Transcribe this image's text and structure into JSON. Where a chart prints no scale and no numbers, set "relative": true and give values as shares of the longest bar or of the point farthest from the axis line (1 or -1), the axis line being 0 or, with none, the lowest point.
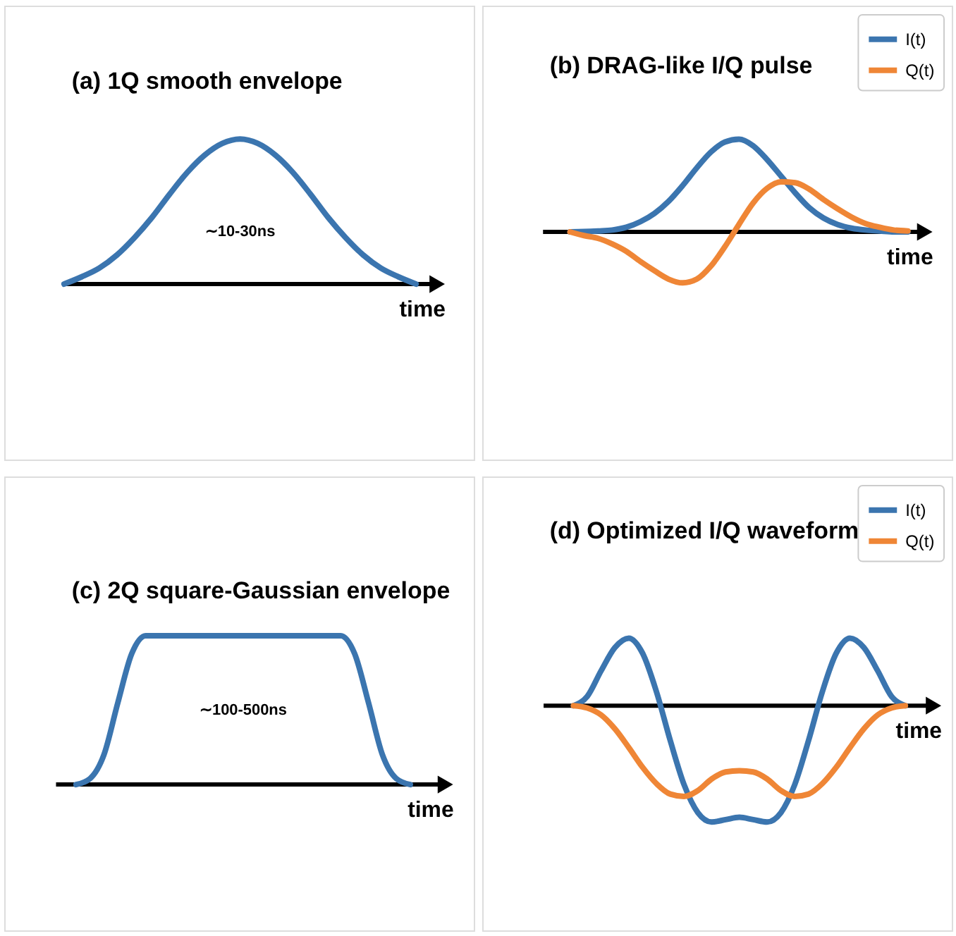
{
  "chart_data": [
    {
      "type": "line",
      "title": "(a) 1Q smooth envelope",
      "xlabel": "time",
      "relative": true,
      "tick_labels": false,
      "annotations": [
        "∼10-30ns"
      ],
      "categories": [
        null,
        null,
        null,
        null,
        null,
        null,
        null,
        null,
        null,
        null,
        null,
        null,
        null,
        null,
        null,
        null,
        null,
        null,
        null,
        null,
        null
      ],
      "series": [
        {
          "color": "#3b75af",
          "values": [
            0,
            0.05,
            0.11,
            0.2,
            0.32,
            0.46,
            0.62,
            0.77,
            0.89,
            0.97,
            1,
            0.97,
            0.89,
            0.77,
            0.62,
            0.46,
            0.32,
            0.2,
            0.11,
            0.05,
            0
          ]
        }
      ]
    },
    {
      "type": "line",
      "title": "(b) DRAG-like I/Q pulse",
      "xlabel": "time",
      "relative": true,
      "tick_labels": false,
      "legend": "top right",
      "categories": [
        null,
        null,
        null,
        null,
        null,
        null,
        null,
        null,
        null,
        null,
        null,
        null,
        null,
        null,
        null,
        null,
        null,
        null,
        null,
        null,
        null,
        null,
        null,
        null,
        null
      ],
      "series": [
        {
          "name": "I(t)",
          "color": "#3b75af",
          "values": [
            0,
            0.003,
            0.01,
            0.02,
            0.05,
            0.11,
            0.2,
            0.33,
            0.5,
            0.69,
            0.86,
            0.97,
            1,
            0.93,
            0.78,
            0.6,
            0.42,
            0.26,
            0.15,
            0.08,
            0.04,
            0.02,
            0.01,
            0,
            0
          ]
        },
        {
          "name": "Q(t)",
          "color": "#ef8636",
          "values": [
            0,
            -0.04,
            -0.07,
            -0.13,
            -0.21,
            -0.32,
            -0.42,
            -0.51,
            -0.55,
            -0.51,
            -0.37,
            -0.16,
            0.08,
            0.31,
            0.47,
            0.54,
            0.53,
            0.46,
            0.35,
            0.25,
            0.16,
            0.09,
            0.05,
            0.02,
            0.01
          ]
        }
      ]
    },
    {
      "type": "line",
      "title": "(c) 2Q square-Gaussian envelope",
      "xlabel": "time",
      "relative": true,
      "tick_labels": false,
      "annotations": [
        "∼100-500ns"
      ],
      "categories": [
        null,
        null,
        null,
        null,
        null,
        null,
        null,
        null,
        null,
        null,
        null,
        null,
        null,
        null,
        null,
        null,
        null,
        null,
        null,
        null,
        null,
        null,
        null,
        null,
        null
      ],
      "series": [
        {
          "color": "#3b75af",
          "values": [
            0,
            0.04,
            0.2,
            0.55,
            0.88,
            1,
            1,
            1,
            1,
            1,
            1,
            1,
            1,
            1,
            1,
            1,
            1,
            1,
            1,
            1,
            0.88,
            0.55,
            0.2,
            0.04,
            0
          ]
        }
      ]
    },
    {
      "type": "line",
      "title": "(d) Optimized I/Q waveform",
      "xlabel": "time",
      "relative": true,
      "tick_labels": false,
      "legend": "top right",
      "categories": [
        null,
        null,
        null,
        null,
        null,
        null,
        null,
        null,
        null,
        null,
        null,
        null,
        null,
        null,
        null,
        null,
        null,
        null,
        null,
        null,
        null,
        null,
        null,
        null,
        null
      ],
      "series": [
        {
          "name": "I(t)",
          "color": "#3b75af",
          "values": [
            0,
            0.08,
            0.3,
            0.5,
            0.58,
            0.45,
            0.12,
            -0.3,
            -0.68,
            -0.92,
            -1,
            -0.98,
            -0.96,
            -0.98,
            -1,
            -0.92,
            -0.68,
            -0.3,
            0.12,
            0.45,
            0.58,
            0.5,
            0.3,
            0.08,
            0
          ]
        },
        {
          "name": "Q(t)",
          "color": "#ef8636",
          "values": [
            0,
            -0.02,
            -0.08,
            -0.2,
            -0.36,
            -0.53,
            -0.67,
            -0.76,
            -0.78,
            -0.73,
            -0.63,
            -0.57,
            -0.56,
            -0.57,
            -0.63,
            -0.73,
            -0.78,
            -0.76,
            -0.67,
            -0.53,
            -0.36,
            -0.2,
            -0.08,
            -0.02,
            0
          ]
        }
      ]
    }
  ]
}
